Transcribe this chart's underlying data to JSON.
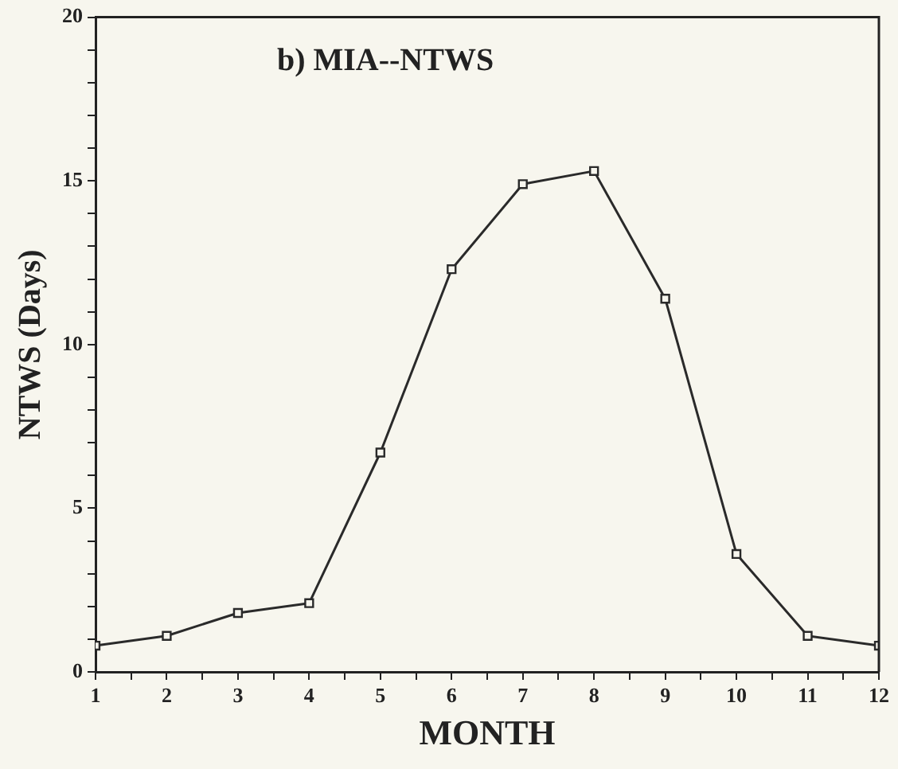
{
  "chart_data": {
    "type": "line",
    "title": "b) MIA--NTWS",
    "xlabel": "MONTH",
    "ylabel": "NTWS (Days)",
    "x": [
      1,
      2,
      3,
      4,
      5,
      6,
      7,
      8,
      9,
      10,
      11,
      12
    ],
    "series": [
      {
        "color": "#2a2a2a",
        "values": [
          0.8,
          1.1,
          1.8,
          2.1,
          6.7,
          12.3,
          14.9,
          15.3,
          11.4,
          3.6,
          1.1,
          0.8
        ]
      }
    ],
    "xlim": [
      1,
      12
    ],
    "xticks": [
      1,
      {
        "value": 1.5,
        "label": null
      },
      2,
      {
        "value": 2.5,
        "label": null
      },
      3,
      {
        "value": 3.5,
        "label": null
      },
      4,
      {
        "value": 4.5,
        "label": null
      },
      5,
      {
        "value": 5.5,
        "label": null
      },
      6,
      {
        "value": 6.5,
        "label": null
      },
      7,
      {
        "value": 7.5,
        "label": null
      },
      8,
      {
        "value": 8.5,
        "label": null
      },
      9,
      {
        "value": 9.5,
        "label": null
      },
      10,
      {
        "value": 10.5,
        "label": null
      },
      11,
      {
        "value": 11.5,
        "label": null
      },
      12
    ],
    "ylim": [
      0,
      20
    ],
    "yticks": [
      0,
      {
        "value": 1,
        "label": null
      },
      {
        "value": 2,
        "label": null
      },
      {
        "value": 3,
        "label": null
      },
      {
        "value": 4,
        "label": null
      },
      5,
      {
        "value": 6,
        "label": null
      },
      {
        "value": 7,
        "label": null
      },
      {
        "value": 8,
        "label": null
      },
      {
        "value": 9,
        "label": null
      },
      10,
      {
        "value": 11,
        "label": null
      },
      {
        "value": 12,
        "label": null
      },
      {
        "value": 13,
        "label": null
      },
      {
        "value": 14,
        "label": null
      },
      15,
      {
        "value": 16,
        "label": null
      },
      {
        "value": 17,
        "label": null
      },
      {
        "value": 18,
        "label": null
      },
      {
        "value": 19,
        "label": null
      },
      20
    ],
    "grid": false,
    "legend": false,
    "marker": "square",
    "line_style": "solid"
  }
}
